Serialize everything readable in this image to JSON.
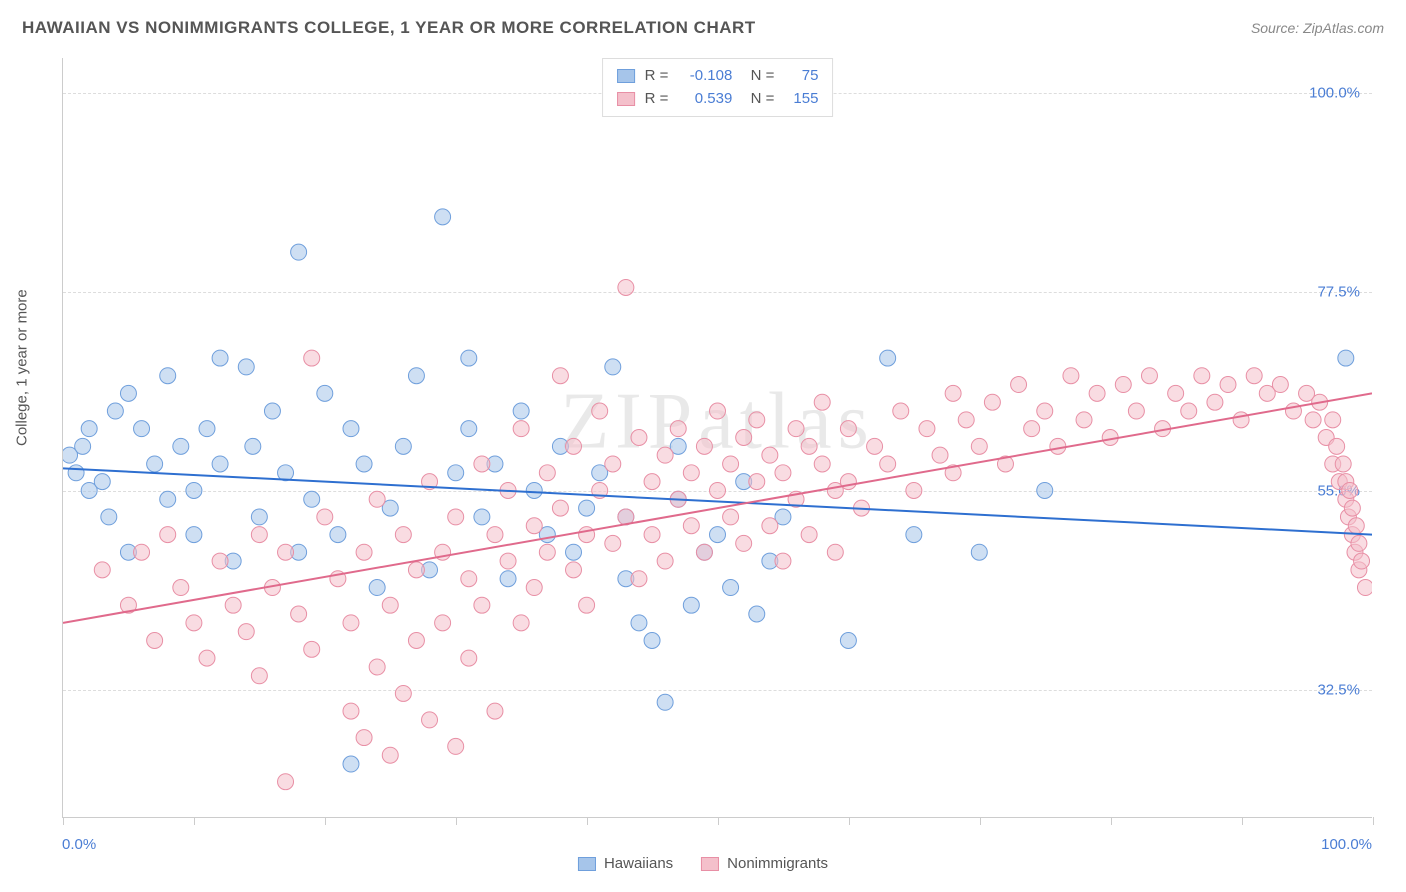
{
  "title": "HAWAIIAN VS NONIMMIGRANTS COLLEGE, 1 YEAR OR MORE CORRELATION CHART",
  "source": "Source: ZipAtlas.com",
  "watermark": "ZIPatlas",
  "ylabel": "College, 1 year or more",
  "chart": {
    "type": "scatter",
    "background_color": "#ffffff",
    "grid_color": "#dddddd",
    "grid_dash": "4,4",
    "axis_color": "#cccccc",
    "xlim": [
      0,
      100
    ],
    "ylim": [
      18,
      104
    ],
    "y_gridlines": [
      32.5,
      55.0,
      77.5,
      100.0
    ],
    "y_tick_labels": [
      "32.5%",
      "55.0%",
      "77.5%",
      "100.0%"
    ],
    "x_ticks": [
      0,
      10,
      20,
      30,
      40,
      50,
      60,
      70,
      80,
      90,
      100
    ],
    "x_tick_labels": {
      "left": "0.0%",
      "right": "100.0%"
    },
    "label_color": "#4a7dd4",
    "text_color": "#555555",
    "label_fontsize": 15,
    "title_fontsize": 17,
    "marker_radius": 8,
    "marker_opacity": 0.55,
    "line_width": 2,
    "series": [
      {
        "name": "Hawaiians",
        "fill_color": "#a6c5ea",
        "stroke_color": "#6f9fdc",
        "line_color": "#2e6fd0",
        "R": "-0.108",
        "N": "75",
        "trend": {
          "x1": 0,
          "y1": 57.5,
          "x2": 100,
          "y2": 50.0
        },
        "points": [
          [
            0.5,
            59
          ],
          [
            1,
            57
          ],
          [
            1.5,
            60
          ],
          [
            2,
            62
          ],
          [
            2,
            55
          ],
          [
            3,
            56
          ],
          [
            3.5,
            52
          ],
          [
            4,
            64
          ],
          [
            5,
            66
          ],
          [
            5,
            48
          ],
          [
            6,
            62
          ],
          [
            7,
            58
          ],
          [
            8,
            54
          ],
          [
            8,
            68
          ],
          [
            9,
            60
          ],
          [
            10,
            55
          ],
          [
            10,
            50
          ],
          [
            11,
            62
          ],
          [
            12,
            70
          ],
          [
            12,
            58
          ],
          [
            13,
            47
          ],
          [
            14,
            69
          ],
          [
            14.5,
            60
          ],
          [
            15,
            52
          ],
          [
            16,
            64
          ],
          [
            17,
            57
          ],
          [
            18,
            48
          ],
          [
            18,
            82
          ],
          [
            19,
            54
          ],
          [
            20,
            66
          ],
          [
            21,
            50
          ],
          [
            22,
            24
          ],
          [
            22,
            62
          ],
          [
            23,
            58
          ],
          [
            24,
            44
          ],
          [
            25,
            53
          ],
          [
            26,
            60
          ],
          [
            27,
            68
          ],
          [
            28,
            46
          ],
          [
            29,
            86
          ],
          [
            30,
            57
          ],
          [
            31,
            62
          ],
          [
            31,
            70
          ],
          [
            32,
            52
          ],
          [
            33,
            58
          ],
          [
            34,
            45
          ],
          [
            35,
            64
          ],
          [
            36,
            55
          ],
          [
            37,
            50
          ],
          [
            38,
            60
          ],
          [
            39,
            48
          ],
          [
            40,
            53
          ],
          [
            41,
            57
          ],
          [
            42,
            69
          ],
          [
            43,
            45
          ],
          [
            43,
            52
          ],
          [
            44,
            40
          ],
          [
            45,
            38
          ],
          [
            46,
            31
          ],
          [
            47,
            54
          ],
          [
            47,
            60
          ],
          [
            48,
            42
          ],
          [
            49,
            48
          ],
          [
            50,
            50
          ],
          [
            51,
            44
          ],
          [
            52,
            56
          ],
          [
            53,
            41
          ],
          [
            54,
            47
          ],
          [
            55,
            52
          ],
          [
            60,
            38
          ],
          [
            63,
            70
          ],
          [
            65,
            50
          ],
          [
            70,
            48
          ],
          [
            75,
            55
          ],
          [
            98,
            70
          ]
        ]
      },
      {
        "name": "Nonimmigrants",
        "fill_color": "#f4c0cb",
        "stroke_color": "#e88fa5",
        "line_color": "#e06a8c",
        "R": "0.539",
        "N": "155",
        "trend": {
          "x1": 0,
          "y1": 40.0,
          "x2": 100,
          "y2": 66.0
        },
        "points": [
          [
            3,
            46
          ],
          [
            5,
            42
          ],
          [
            6,
            48
          ],
          [
            7,
            38
          ],
          [
            8,
            50
          ],
          [
            9,
            44
          ],
          [
            10,
            40
          ],
          [
            11,
            36
          ],
          [
            12,
            47
          ],
          [
            13,
            42
          ],
          [
            14,
            39
          ],
          [
            15,
            34
          ],
          [
            15,
            50
          ],
          [
            16,
            44
          ],
          [
            17,
            22
          ],
          [
            17,
            48
          ],
          [
            18,
            41
          ],
          [
            19,
            37
          ],
          [
            19,
            70
          ],
          [
            20,
            52
          ],
          [
            21,
            45
          ],
          [
            22,
            40
          ],
          [
            22,
            30
          ],
          [
            23,
            48
          ],
          [
            23,
            27
          ],
          [
            24,
            54
          ],
          [
            24,
            35
          ],
          [
            25,
            42
          ],
          [
            25,
            25
          ],
          [
            26,
            50
          ],
          [
            26,
            32
          ],
          [
            27,
            46
          ],
          [
            27,
            38
          ],
          [
            28,
            56
          ],
          [
            28,
            29
          ],
          [
            29,
            48
          ],
          [
            29,
            40
          ],
          [
            30,
            52
          ],
          [
            30,
            26
          ],
          [
            31,
            45
          ],
          [
            31,
            36
          ],
          [
            32,
            58
          ],
          [
            32,
            42
          ],
          [
            33,
            50
          ],
          [
            33,
            30
          ],
          [
            34,
            47
          ],
          [
            34,
            55
          ],
          [
            35,
            62
          ],
          [
            35,
            40
          ],
          [
            36,
            51
          ],
          [
            36,
            44
          ],
          [
            37,
            48
          ],
          [
            37,
            57
          ],
          [
            38,
            53
          ],
          [
            38,
            68
          ],
          [
            39,
            46
          ],
          [
            39,
            60
          ],
          [
            40,
            50
          ],
          [
            40,
            42
          ],
          [
            41,
            55
          ],
          [
            41,
            64
          ],
          [
            42,
            58
          ],
          [
            42,
            49
          ],
          [
            43,
            78
          ],
          [
            43,
            52
          ],
          [
            44,
            61
          ],
          [
            44,
            45
          ],
          [
            45,
            56
          ],
          [
            45,
            50
          ],
          [
            46,
            59
          ],
          [
            46,
            47
          ],
          [
            47,
            54
          ],
          [
            47,
            62
          ],
          [
            48,
            51
          ],
          [
            48,
            57
          ],
          [
            49,
            60
          ],
          [
            49,
            48
          ],
          [
            50,
            55
          ],
          [
            50,
            64
          ],
          [
            51,
            52
          ],
          [
            51,
            58
          ],
          [
            52,
            61
          ],
          [
            52,
            49
          ],
          [
            53,
            56
          ],
          [
            53,
            63
          ],
          [
            54,
            59
          ],
          [
            54,
            51
          ],
          [
            55,
            47
          ],
          [
            55,
            57
          ],
          [
            56,
            62
          ],
          [
            56,
            54
          ],
          [
            57,
            60
          ],
          [
            57,
            50
          ],
          [
            58,
            58
          ],
          [
            58,
            65
          ],
          [
            59,
            55
          ],
          [
            59,
            48
          ],
          [
            60,
            62
          ],
          [
            60,
            56
          ],
          [
            61,
            53
          ],
          [
            62,
            60
          ],
          [
            63,
            58
          ],
          [
            64,
            64
          ],
          [
            65,
            55
          ],
          [
            66,
            62
          ],
          [
            67,
            59
          ],
          [
            68,
            66
          ],
          [
            68,
            57
          ],
          [
            69,
            63
          ],
          [
            70,
            60
          ],
          [
            71,
            65
          ],
          [
            72,
            58
          ],
          [
            73,
            67
          ],
          [
            74,
            62
          ],
          [
            75,
            64
          ],
          [
            76,
            60
          ],
          [
            77,
            68
          ],
          [
            78,
            63
          ],
          [
            79,
            66
          ],
          [
            80,
            61
          ],
          [
            81,
            67
          ],
          [
            82,
            64
          ],
          [
            83,
            68
          ],
          [
            84,
            62
          ],
          [
            85,
            66
          ],
          [
            86,
            64
          ],
          [
            87,
            68
          ],
          [
            88,
            65
          ],
          [
            89,
            67
          ],
          [
            90,
            63
          ],
          [
            91,
            68
          ],
          [
            92,
            66
          ],
          [
            93,
            67
          ],
          [
            94,
            64
          ],
          [
            95,
            66
          ],
          [
            95.5,
            63
          ],
          [
            96,
            65
          ],
          [
            96.5,
            61
          ],
          [
            97,
            63
          ],
          [
            97,
            58
          ],
          [
            97.3,
            60
          ],
          [
            97.5,
            56
          ],
          [
            97.8,
            58
          ],
          [
            98,
            54
          ],
          [
            98,
            56
          ],
          [
            98.2,
            52
          ],
          [
            98.3,
            55
          ],
          [
            98.5,
            50
          ],
          [
            98.5,
            53
          ],
          [
            98.7,
            48
          ],
          [
            98.8,
            51
          ],
          [
            99,
            46
          ],
          [
            99,
            49
          ],
          [
            99.2,
            47
          ],
          [
            99.5,
            44
          ]
        ]
      }
    ]
  },
  "legend": {
    "items": [
      {
        "label": "Hawaiians",
        "fill": "#a6c5ea",
        "stroke": "#6f9fdc"
      },
      {
        "label": "Nonimmigrants",
        "fill": "#f4c0cb",
        "stroke": "#e88fa5"
      }
    ]
  }
}
